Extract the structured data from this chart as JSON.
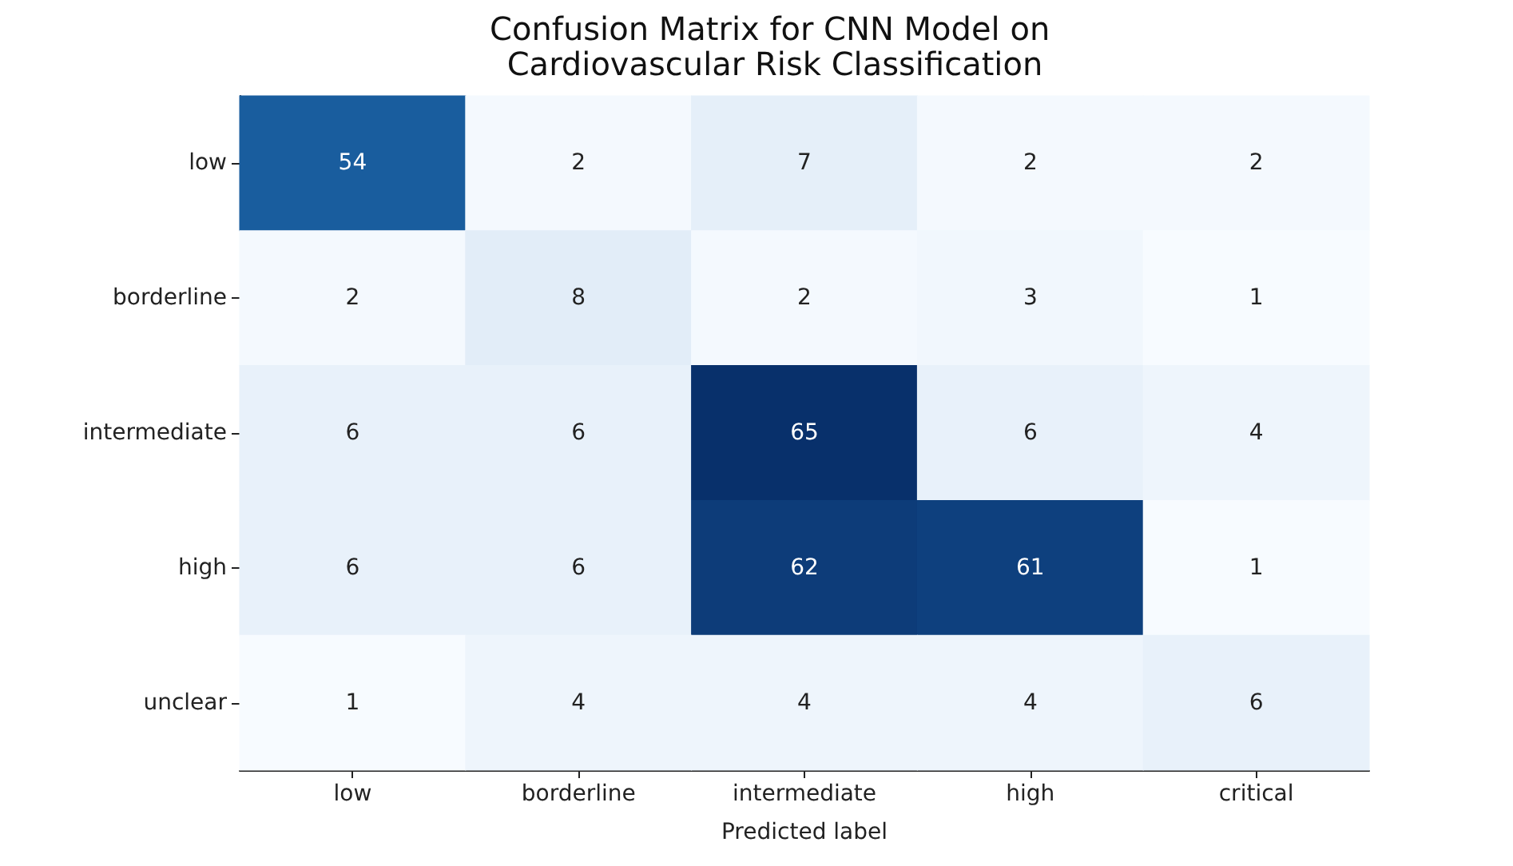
{
  "chart_data": {
    "type": "heatmap",
    "title": "Confusion Matrix for CNN Model on Cardiovascular Risk Classification",
    "xlabel": "Predicted label",
    "data_labels": true,
    "categories": [
      "low",
      "borderline",
      "intermediate",
      "high",
      "critical"
    ],
    "y_categories": [
      "low",
      "borderline",
      "intermediate",
      "high",
      "unclear"
    ],
    "cells": [
      [
        54,
        2,
        7,
        2,
        2
      ],
      [
        2,
        8,
        2,
        3,
        1
      ],
      [
        6,
        6,
        65,
        6,
        4
      ],
      [
        6,
        6,
        62,
        61,
        1
      ],
      [
        1,
        4,
        4,
        4,
        6
      ]
    ]
  }
}
